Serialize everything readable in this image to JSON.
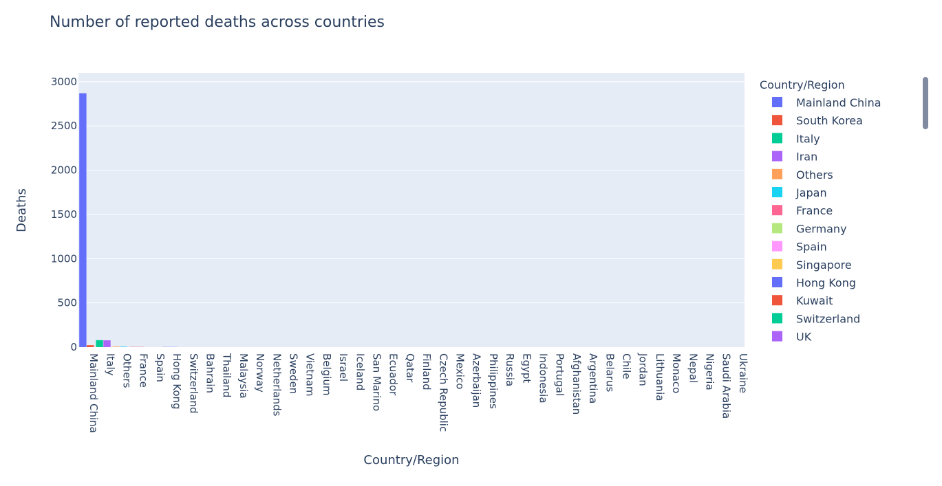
{
  "chart_data": {
    "type": "bar",
    "title": "Number of reported deaths across countries",
    "xlabel": "Country/Region",
    "ylabel": "Deaths",
    "ylim": [
      0,
      3100
    ],
    "yticks": [
      0,
      500,
      1000,
      1500,
      2000,
      2500,
      3000
    ],
    "grid": true,
    "legend_title": "Country/Region",
    "legend_position": "right",
    "categories": [
      "Mainland China",
      "Italy",
      "Others",
      "France",
      "Spain",
      "Hong Kong",
      "Switzerland",
      "Bahrain",
      "Thailand",
      "Malaysia",
      "Norway",
      "Netherlands",
      "Sweden",
      "Vietnam",
      "Belgium",
      "Israel",
      "Iceland",
      "San Marino",
      "Ecuador",
      "Qatar",
      "Finland",
      "Czech Republic",
      "Mexico",
      "Azerbaijan",
      "Philippines",
      "Russia",
      "Egypt",
      "Indonesia",
      "Portugal",
      "Afghanistan",
      "Argentina",
      "Belarus",
      "Chile",
      "Jordan",
      "Lithuania",
      "Monaco",
      "Nepal",
      "Nigeria",
      "Saudi Arabia",
      "Ukraine"
    ],
    "series": [
      {
        "name": "Mainland China",
        "color": "#636efa",
        "values": [
          2870,
          0,
          0,
          0,
          0,
          0,
          0,
          0,
          0,
          0,
          0,
          0,
          0,
          0,
          0,
          0,
          0,
          0,
          0,
          0,
          0,
          0,
          0,
          0,
          0,
          0,
          0,
          0,
          0,
          0,
          0,
          0,
          0,
          0,
          0,
          0,
          0,
          0,
          0,
          0
        ]
      },
      {
        "name": "South Korea",
        "color": "#ef553b",
        "values": [
          22,
          0,
          0,
          0,
          0,
          0,
          0,
          0,
          0,
          0,
          0,
          0,
          0,
          0,
          0,
          0,
          0,
          0,
          0,
          0,
          0,
          0,
          0,
          0,
          0,
          0,
          0,
          0,
          0,
          0,
          0,
          0,
          0,
          0,
          0,
          0,
          0,
          0,
          0,
          0
        ]
      },
      {
        "name": "Italy",
        "color": "#00cc96",
        "values": [
          0,
          79,
          0,
          0,
          0,
          0,
          0,
          0,
          0,
          0,
          0,
          0,
          0,
          0,
          0,
          0,
          0,
          0,
          0,
          0,
          0,
          0,
          0,
          0,
          0,
          0,
          0,
          0,
          0,
          0,
          0,
          0,
          0,
          0,
          0,
          0,
          0,
          0,
          0,
          0
        ]
      },
      {
        "name": "Iran",
        "color": "#ab63fa",
        "values": [
          0,
          77,
          0,
          0,
          0,
          0,
          0,
          0,
          0,
          0,
          0,
          0,
          0,
          0,
          0,
          0,
          0,
          0,
          0,
          0,
          0,
          0,
          0,
          0,
          0,
          0,
          0,
          0,
          0,
          0,
          0,
          0,
          0,
          0,
          0,
          0,
          0,
          0,
          0,
          0
        ]
      },
      {
        "name": "Others",
        "color": "#ffa15a",
        "values": [
          0,
          0,
          6,
          0,
          0,
          0,
          0,
          0,
          0,
          0,
          0,
          0,
          0,
          0,
          0,
          0,
          0,
          0,
          0,
          0,
          0,
          0,
          0,
          0,
          0,
          0,
          0,
          0,
          0,
          0,
          0,
          0,
          0,
          0,
          0,
          0,
          0,
          0,
          0,
          0
        ]
      },
      {
        "name": "Japan",
        "color": "#19d3f3",
        "values": [
          0,
          0,
          6,
          0,
          0,
          0,
          0,
          0,
          0,
          0,
          0,
          0,
          0,
          0,
          0,
          0,
          0,
          0,
          0,
          0,
          0,
          0,
          0,
          0,
          0,
          0,
          0,
          0,
          0,
          0,
          0,
          0,
          0,
          0,
          0,
          0,
          0,
          0,
          0,
          0
        ]
      },
      {
        "name": "France",
        "color": "#ff6692",
        "values": [
          0,
          0,
          0,
          3,
          0,
          0,
          0,
          0,
          0,
          0,
          0,
          0,
          0,
          0,
          0,
          0,
          0,
          0,
          0,
          0,
          0,
          0,
          0,
          0,
          0,
          0,
          0,
          0,
          0,
          0,
          0,
          0,
          0,
          0,
          0,
          0,
          0,
          0,
          0,
          0
        ]
      },
      {
        "name": "Germany",
        "color": "#b6e880",
        "values": [
          0,
          0,
          0,
          0,
          0,
          0,
          0,
          0,
          0,
          0,
          0,
          0,
          0,
          0,
          0,
          0,
          0,
          0,
          0,
          0,
          0,
          0,
          0,
          0,
          0,
          0,
          0,
          0,
          0,
          0,
          0,
          0,
          0,
          0,
          0,
          0,
          0,
          0,
          0,
          0
        ]
      },
      {
        "name": "Spain",
        "color": "#ff97ff",
        "values": [
          0,
          0,
          0,
          0,
          0,
          0,
          0,
          0,
          0,
          0,
          0,
          0,
          0,
          0,
          0,
          0,
          0,
          0,
          0,
          0,
          0,
          0,
          0,
          0,
          0,
          0,
          0,
          0,
          0,
          0,
          0,
          0,
          0,
          0,
          0,
          0,
          0,
          0,
          0,
          0
        ]
      },
      {
        "name": "Singapore",
        "color": "#fecb52",
        "values": [
          0,
          0,
          0,
          0,
          0,
          0,
          0,
          0,
          0,
          0,
          0,
          0,
          0,
          0,
          0,
          0,
          0,
          0,
          0,
          0,
          0,
          0,
          0,
          0,
          0,
          0,
          0,
          0,
          0,
          0,
          0,
          0,
          0,
          0,
          0,
          0,
          0,
          0,
          0,
          0
        ]
      },
      {
        "name": "Hong Kong",
        "color": "#636efa",
        "values": [
          0,
          0,
          0,
          0,
          0,
          2,
          0,
          0,
          0,
          0,
          0,
          0,
          0,
          0,
          0,
          0,
          0,
          0,
          0,
          0,
          0,
          0,
          0,
          0,
          0,
          0,
          0,
          0,
          0,
          0,
          0,
          0,
          0,
          0,
          0,
          0,
          0,
          0,
          0,
          0
        ]
      },
      {
        "name": "Kuwait",
        "color": "#ef553b",
        "values": [
          0,
          0,
          0,
          0,
          0,
          0,
          0,
          0,
          0,
          0,
          0,
          0,
          0,
          0,
          0,
          0,
          0,
          0,
          0,
          0,
          0,
          0,
          0,
          0,
          0,
          0,
          0,
          0,
          0,
          0,
          0,
          0,
          0,
          0,
          0,
          0,
          0,
          0,
          0,
          0
        ]
      },
      {
        "name": "Switzerland",
        "color": "#00cc96",
        "values": [
          0,
          0,
          0,
          0,
          0,
          0,
          0,
          0,
          0,
          0,
          0,
          0,
          0,
          0,
          0,
          0,
          0,
          0,
          0,
          0,
          0,
          0,
          0,
          0,
          0,
          0,
          0,
          0,
          0,
          0,
          0,
          0,
          0,
          0,
          0,
          0,
          0,
          0,
          0,
          0
        ]
      },
      {
        "name": "UK",
        "color": "#ab63fa",
        "values": [
          0,
          0,
          0,
          0,
          0,
          0,
          0,
          0,
          0,
          0,
          0,
          0,
          0,
          0,
          0,
          0,
          0,
          0,
          0,
          0,
          0,
          0,
          0,
          0,
          0,
          0,
          0,
          0,
          0,
          0,
          0,
          0,
          0,
          0,
          0,
          0,
          0,
          0,
          0,
          0
        ]
      }
    ]
  }
}
